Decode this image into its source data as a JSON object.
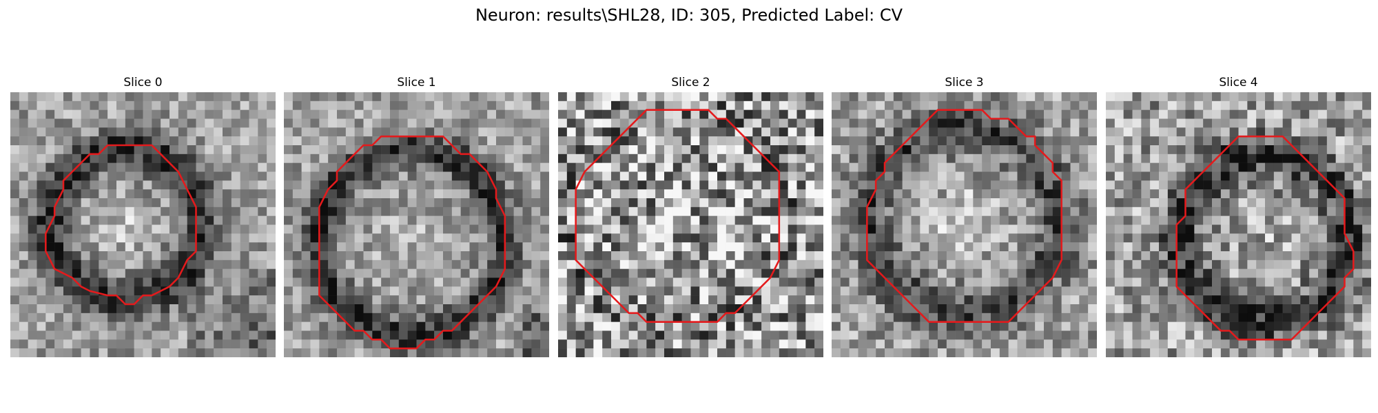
{
  "figure": {
    "title": "Neuron: results\\SHL28, ID: 305, Predicted Label: CV"
  },
  "colors": {
    "contour": "#e41a1c",
    "background": "#ffffff"
  },
  "panels": [
    {
      "title": "Slice 0"
    },
    {
      "title": "Slice 1"
    },
    {
      "title": "Slice 2"
    },
    {
      "title": "Slice 3"
    },
    {
      "title": "Slice 4"
    }
  ]
}
